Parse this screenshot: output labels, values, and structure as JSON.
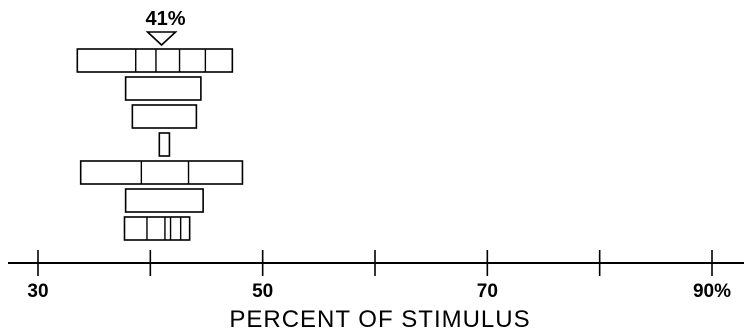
{
  "chart_data": {
    "type": "box-range",
    "title": "",
    "xlabel": "PERCENT OF STIMULUS",
    "ylabel": "",
    "xlim": [
      25,
      92
    ],
    "x_ticks": [
      30,
      40,
      50,
      60,
      70,
      80,
      90
    ],
    "x_tick_labels": [
      {
        "value": 30,
        "label": "30"
      },
      {
        "value": 50,
        "label": "50"
      },
      {
        "value": 70,
        "label": "70"
      },
      {
        "value": 90,
        "label": "90%"
      }
    ],
    "marker": {
      "value": 41,
      "label": "41%"
    },
    "rows": [
      {
        "start": 33.5,
        "end": 47.3,
        "dividers": [
          38.7,
          40.5,
          42.6,
          44.9
        ]
      },
      {
        "start": 37.8,
        "end": 44.5,
        "dividers": []
      },
      {
        "start": 38.4,
        "end": 44.1,
        "dividers": []
      },
      {
        "start": 40.8,
        "end": 41.7,
        "dividers": []
      },
      {
        "start": 33.8,
        "end": 48.2,
        "dividers": [
          39.2,
          43.4
        ]
      },
      {
        "start": 37.8,
        "end": 44.7,
        "dividers": []
      },
      {
        "start": 37.7,
        "end": 43.5,
        "dividers": [
          39.7,
          41.3,
          41.8,
          42.7
        ]
      }
    ],
    "grid": false,
    "legend": "none"
  }
}
